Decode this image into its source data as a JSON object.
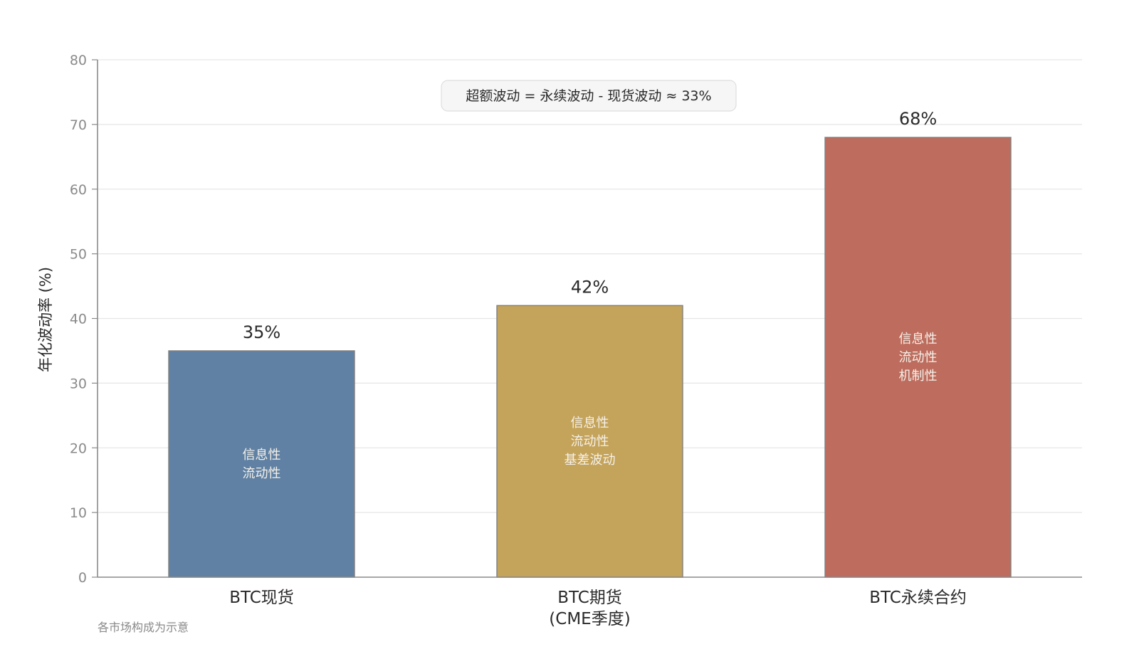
{
  "chart_data": {
    "type": "bar",
    "categories": [
      [
        "BTC现货"
      ],
      [
        "BTC期货",
        "(CME季度)"
      ],
      [
        "BTC永续合约"
      ]
    ],
    "values": [
      35,
      42,
      68
    ],
    "value_labels": [
      "35%",
      "42%",
      "68%"
    ],
    "bar_components": [
      [
        "信息性",
        "流动性"
      ],
      [
        "信息性",
        "流动性",
        "基差波动"
      ],
      [
        "信息性",
        "流动性",
        "机制性"
      ]
    ],
    "colors": [
      "#6081a3",
      "#c4a35a",
      "#bd6c5d"
    ],
    "ylabel": "年化波动率 (%)",
    "xlabel": "",
    "ylim": [
      0,
      80
    ],
    "yticks": [
      0,
      10,
      20,
      30,
      40,
      50,
      60,
      70,
      80
    ],
    "grid": true,
    "annotation": "超额波动 = 永续波动 - 现货波动 ≈ 33%",
    "note": "各市场构成为示意"
  }
}
